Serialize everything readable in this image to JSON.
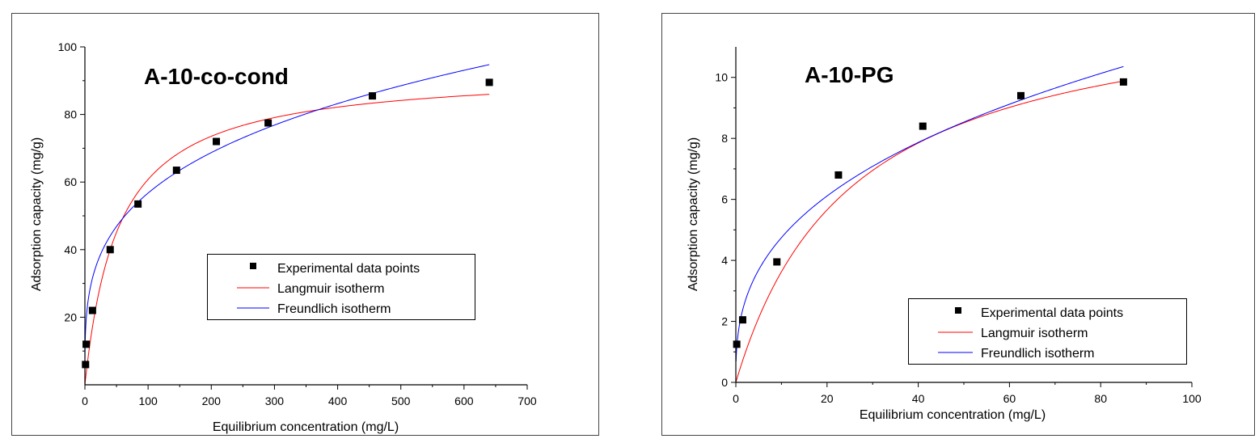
{
  "colors": {
    "langmuir": "#ff0000",
    "freundlich": "#0000ff",
    "marker": "#000000",
    "axis": "#000000"
  },
  "chart_data": [
    {
      "type": "scatter",
      "title": "A-10-co-cond",
      "xlabel": "Equilibrium concentration (mg/L)",
      "ylabel": "Adsorption capacity (mg/g)",
      "xlim": [
        0,
        700
      ],
      "ylim": [
        0,
        100
      ],
      "xticks": [
        "0",
        "100",
        "200",
        "300",
        "400",
        "500",
        "600",
        "700"
      ],
      "yticks": [
        "20",
        "40",
        "60",
        "80",
        "100"
      ],
      "legend": {
        "position": "center-right",
        "entries": [
          "Experimental data points",
          "Langmuir isotherm",
          "Freundlich isotherm"
        ]
      },
      "series": [
        {
          "name": "Experimental data points",
          "kind": "points",
          "x": [
            1,
            2,
            12,
            40,
            84,
            145,
            208,
            290,
            455,
            640
          ],
          "y": [
            6,
            12,
            22,
            40,
            53.5,
            63.5,
            72,
            77.5,
            85.5,
            89.5
          ]
        },
        {
          "name": "Langmuir isotherm",
          "kind": "line",
          "model": "langmuir",
          "params": {
            "qmax": 93.1,
            "KL": 0.0188
          },
          "x_range": [
            0,
            640
          ]
        },
        {
          "name": "Freundlich isotherm",
          "kind": "line",
          "model": "freundlich",
          "params": {
            "KF": 15.9,
            "n": 3.62
          },
          "x_range": [
            0,
            640
          ]
        }
      ]
    },
    {
      "type": "scatter",
      "title": "A-10-PG",
      "xlabel": "Equilibrium concentration (mg/L)",
      "ylabel": "Adsorption capacity (mg/g)",
      "xlim": [
        0,
        100
      ],
      "ylim": [
        0,
        11
      ],
      "xticks": [
        "0",
        "20",
        "40",
        "60",
        "80",
        "100"
      ],
      "yticks": [
        "0",
        "2",
        "4",
        "6",
        "8",
        "10"
      ],
      "legend": {
        "position": "bottom-right",
        "entries": [
          "Experimental data points",
          "Langmuir isotherm",
          "Freundlich isotherm"
        ]
      },
      "series": [
        {
          "name": "Experimental data points",
          "kind": "points",
          "x": [
            0.2,
            1.5,
            9,
            22.5,
            41,
            62.5,
            85
          ],
          "y": [
            1.25,
            2.05,
            3.95,
            6.8,
            8.4,
            9.4,
            9.85
          ]
        },
        {
          "name": "Langmuir isotherm",
          "kind": "line",
          "model": "langmuir",
          "params": {
            "qmax": 12.83,
            "KL": 0.0394
          },
          "x_range": [
            0,
            85
          ]
        },
        {
          "name": "Freundlich isotherm",
          "kind": "line",
          "model": "freundlich",
          "params": {
            "KF": 2.05,
            "n": 2.743
          },
          "x_range": [
            0.05,
            85
          ]
        }
      ]
    }
  ]
}
